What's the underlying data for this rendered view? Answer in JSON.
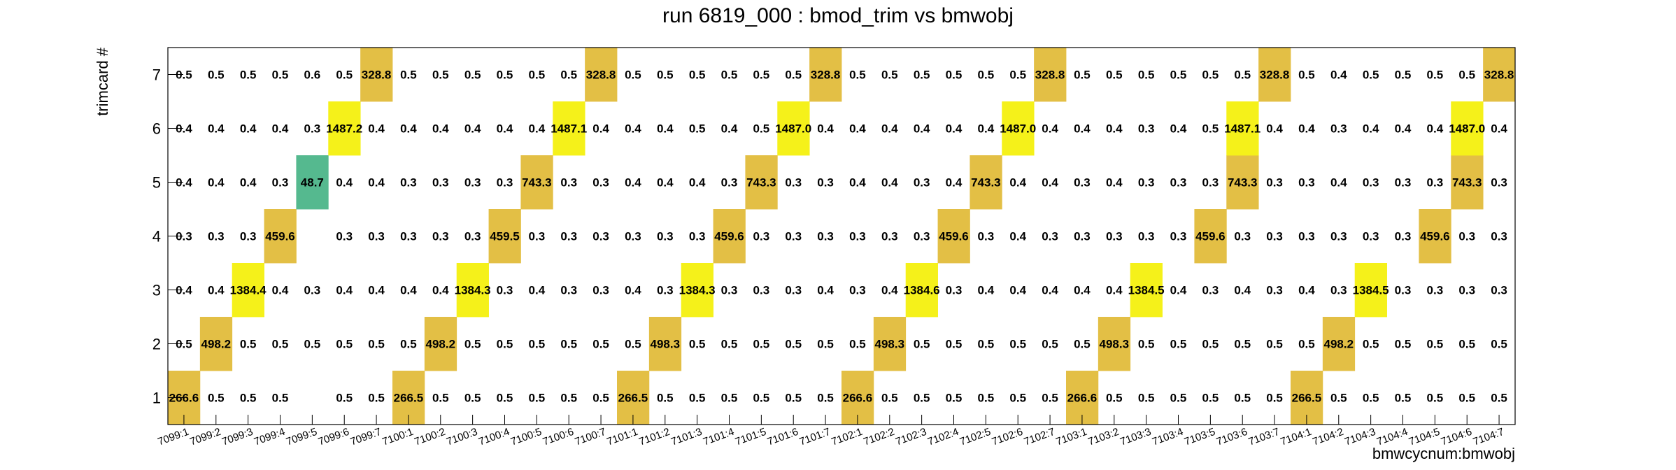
{
  "chart_data": {
    "type": "heatmap",
    "title": "run 6819_000 : bmod_trim vs bmwobj",
    "xlabel": "bmwcycnum:bmwobj",
    "ylabel": "trimcard #",
    "x_categories": [
      "7099:1",
      "7099:2",
      "7099:3",
      "7099:4",
      "7099:5",
      "7099:6",
      "7099:7",
      "7100:1",
      "7100:2",
      "7100:3",
      "7100:4",
      "7100:5",
      "7100:6",
      "7100:7",
      "7101:1",
      "7101:2",
      "7101:3",
      "7101:4",
      "7101:5",
      "7101:6",
      "7101:7",
      "7102:1",
      "7102:2",
      "7102:3",
      "7102:4",
      "7102:5",
      "7102:6",
      "7102:7",
      "7103:1",
      "7103:2",
      "7103:3",
      "7103:4",
      "7103:5",
      "7103:6",
      "7103:7",
      "7104:1",
      "7104:2",
      "7104:3",
      "7104:4",
      "7104:5",
      "7104:6",
      "7104:7"
    ],
    "y_categories": [
      "1",
      "2",
      "3",
      "4",
      "5",
      "6",
      "7"
    ],
    "values": [
      [
        "266.6",
        "0.5",
        "0.5",
        "0.5",
        "",
        "0.5",
        "0.5",
        "266.5",
        "0.5",
        "0.5",
        "0.5",
        "0.5",
        "0.5",
        "0.5",
        "266.5",
        "0.5",
        "0.5",
        "0.5",
        "0.5",
        "0.5",
        "0.5",
        "266.6",
        "0.5",
        "0.5",
        "0.5",
        "0.5",
        "0.5",
        "0.5",
        "266.6",
        "0.5",
        "0.5",
        "0.5",
        "0.5",
        "0.5",
        "0.5",
        "266.5",
        "0.5",
        "0.5",
        "0.5",
        "0.5",
        "0.5",
        "0.5"
      ],
      [
        "0.5",
        "498.2",
        "0.5",
        "0.5",
        "0.5",
        "0.5",
        "0.5",
        "0.5",
        "498.2",
        "0.5",
        "0.5",
        "0.5",
        "0.5",
        "0.5",
        "0.5",
        "498.3",
        "0.5",
        "0.5",
        "0.5",
        "0.5",
        "0.5",
        "0.5",
        "498.3",
        "0.5",
        "0.5",
        "0.5",
        "0.5",
        "0.5",
        "0.5",
        "498.3",
        "0.5",
        "0.5",
        "0.5",
        "0.5",
        "0.5",
        "0.5",
        "498.2",
        "0.5",
        "0.5",
        "0.5",
        "0.5",
        "0.5"
      ],
      [
        "0.4",
        "0.4",
        "1384.4",
        "0.4",
        "0.3",
        "0.4",
        "0.4",
        "0.4",
        "0.4",
        "1384.3",
        "0.3",
        "0.4",
        "0.3",
        "0.3",
        "0.4",
        "0.3",
        "1384.3",
        "0.3",
        "0.3",
        "0.3",
        "0.4",
        "0.3",
        "0.4",
        "1384.6",
        "0.3",
        "0.4",
        "0.4",
        "0.4",
        "0.4",
        "0.4",
        "1384.5",
        "0.4",
        "0.3",
        "0.4",
        "0.3",
        "0.4",
        "0.3",
        "1384.5",
        "0.3",
        "0.3",
        "0.3",
        "0.3"
      ],
      [
        "0.3",
        "0.3",
        "0.3",
        "459.6",
        "",
        "0.3",
        "0.3",
        "0.3",
        "0.3",
        "0.3",
        "459.5",
        "0.3",
        "0.3",
        "0.3",
        "0.3",
        "0.3",
        "0.3",
        "459.6",
        "0.3",
        "0.3",
        "0.3",
        "0.3",
        "0.3",
        "0.3",
        "459.6",
        "0.3",
        "0.4",
        "0.3",
        "0.3",
        "0.3",
        "0.3",
        "0.3",
        "459.6",
        "0.3",
        "0.3",
        "0.3",
        "0.3",
        "0.3",
        "0.3",
        "459.6",
        "0.3",
        "0.3"
      ],
      [
        "0.4",
        "0.4",
        "0.4",
        "0.3",
        "48.7",
        "0.4",
        "0.4",
        "0.3",
        "0.3",
        "0.3",
        "0.3",
        "743.3",
        "0.3",
        "0.3",
        "0.4",
        "0.4",
        "0.4",
        "0.3",
        "743.3",
        "0.3",
        "0.3",
        "0.4",
        "0.4",
        "0.3",
        "0.4",
        "743.3",
        "0.4",
        "0.4",
        "0.3",
        "0.4",
        "0.3",
        "0.3",
        "0.3",
        "743.3",
        "0.3",
        "0.3",
        "0.4",
        "0.3",
        "0.3",
        "0.3",
        "743.3",
        "0.3"
      ],
      [
        "0.4",
        "0.4",
        "0.4",
        "0.4",
        "0.3",
        "1487.2",
        "0.4",
        "0.4",
        "0.4",
        "0.4",
        "0.4",
        "0.4",
        "1487.1",
        "0.4",
        "0.4",
        "0.4",
        "0.5",
        "0.4",
        "0.5",
        "1487.0",
        "0.4",
        "0.4",
        "0.4",
        "0.4",
        "0.4",
        "0.4",
        "1487.0",
        "0.4",
        "0.4",
        "0.4",
        "0.3",
        "0.4",
        "0.5",
        "1487.1",
        "0.4",
        "0.4",
        "0.3",
        "0.4",
        "0.4",
        "0.4",
        "1487.0",
        "0.4"
      ],
      [
        "0.5",
        "0.5",
        "0.5",
        "0.5",
        "0.6",
        "0.5",
        "328.8",
        "0.5",
        "0.5",
        "0.5",
        "0.5",
        "0.5",
        "0.5",
        "328.8",
        "0.5",
        "0.5",
        "0.5",
        "0.5",
        "0.5",
        "0.5",
        "328.8",
        "0.5",
        "0.5",
        "0.5",
        "0.5",
        "0.5",
        "0.5",
        "328.8",
        "0.5",
        "0.5",
        "0.5",
        "0.5",
        "0.5",
        "0.5",
        "328.8",
        "0.5",
        "0.4",
        "0.5",
        "0.5",
        "0.5",
        "0.5",
        "328.8"
      ]
    ],
    "colors": {
      "background": "#ffffff",
      "frame": "#000000",
      "high": "#f5f11a",
      "mid": "#e3bf45",
      "low": "#55b98f"
    },
    "grid": false,
    "legend": "none"
  }
}
